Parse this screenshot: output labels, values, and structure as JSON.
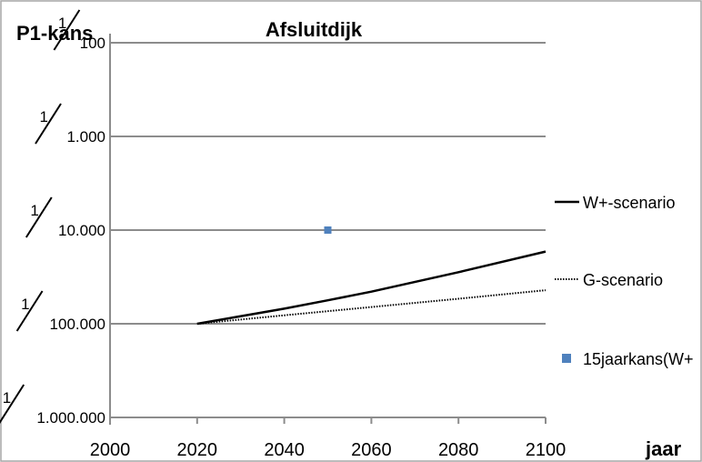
{
  "chart_data": {
    "type": "line",
    "title": "Afsluitdijk",
    "ylabel": "P1-kans",
    "xlabel": "jaar",
    "xlim": [
      2000,
      2100
    ],
    "x_ticks": [
      2000,
      2020,
      2040,
      2060,
      2080,
      2100
    ],
    "x_tick_labels": [
      "2000",
      "2020",
      "2040",
      "2060",
      "2080",
      "2100"
    ],
    "y_scale": "log",
    "y_ticks": [
      {
        "value": 0.01,
        "numerator": "1",
        "denominator": "100"
      },
      {
        "value": 0.001,
        "numerator": "1",
        "denominator": "1.000"
      },
      {
        "value": 0.0001,
        "numerator": "1",
        "denominator": "10.000"
      },
      {
        "value": 1e-05,
        "numerator": "1",
        "denominator": "100.000"
      },
      {
        "value": 1e-06,
        "numerator": "1",
        "denominator": "1.000.000"
      }
    ],
    "ylim": [
      1e-06,
      0.01
    ],
    "grid": true,
    "legend_position": "right",
    "series": [
      {
        "name": "W+-scenario",
        "style": "solid",
        "color": "#000000",
        "x": [
          2020,
          2040,
          2050,
          2060,
          2080,
          2100
        ],
        "y": [
          1e-05,
          1.45e-05,
          1.78e-05,
          2.2e-05,
          3.55e-05,
          5.9e-05
        ]
      },
      {
        "name": "G-scenario",
        "style": "dotted",
        "color": "#000000",
        "x": [
          2020,
          2040,
          2060,
          2080,
          2100
        ],
        "y": [
          1e-05,
          1.23e-05,
          1.51e-05,
          1.85e-05,
          2.28e-05
        ]
      },
      {
        "name": "15jaarkans(W+",
        "style": "marker",
        "color": "#4f81bd",
        "x": [
          2050
        ],
        "y": [
          0.0001
        ]
      }
    ]
  }
}
